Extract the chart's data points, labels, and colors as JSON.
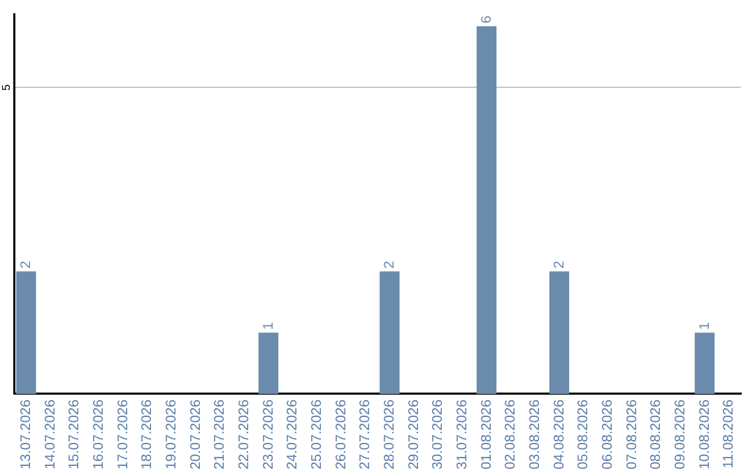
{
  "chart_data": {
    "type": "bar",
    "categories": [
      "13.07.2026",
      "14.07.2026",
      "15.07.2026",
      "16.07.2026",
      "17.07.2026",
      "18.07.2026",
      "19.07.2026",
      "20.07.2026",
      "21.07.2026",
      "22.07.2026",
      "23.07.2026",
      "24.07.2026",
      "25.07.2026",
      "26.07.2026",
      "27.07.2026",
      "28.07.2026",
      "29.07.2026",
      "30.07.2026",
      "31.07.2026",
      "01.08.2026",
      "02.08.2026",
      "03.08.2026",
      "04.08.2026",
      "05.08.2026",
      "06.08.2026",
      "07.08.2026",
      "08.08.2026",
      "09.08.2026",
      "10.08.2026",
      "11.08.2026"
    ],
    "values": [
      2,
      0,
      0,
      0,
      0,
      0,
      0,
      0,
      0,
      0,
      1,
      0,
      0,
      0,
      0,
      2,
      0,
      0,
      0,
      6,
      0,
      0,
      2,
      0,
      0,
      0,
      0,
      0,
      1,
      0
    ],
    "value_labels": [
      "2",
      null,
      null,
      null,
      null,
      null,
      null,
      null,
      null,
      null,
      "1",
      null,
      null,
      null,
      null,
      "2",
      null,
      null,
      null,
      "6",
      null,
      null,
      "2",
      null,
      null,
      null,
      null,
      null,
      "1",
      null
    ],
    "color": "#6a8bab",
    "ylim": [
      0,
      6.2
    ],
    "yticks": [
      5
    ],
    "grid": "y",
    "legend": false
  }
}
